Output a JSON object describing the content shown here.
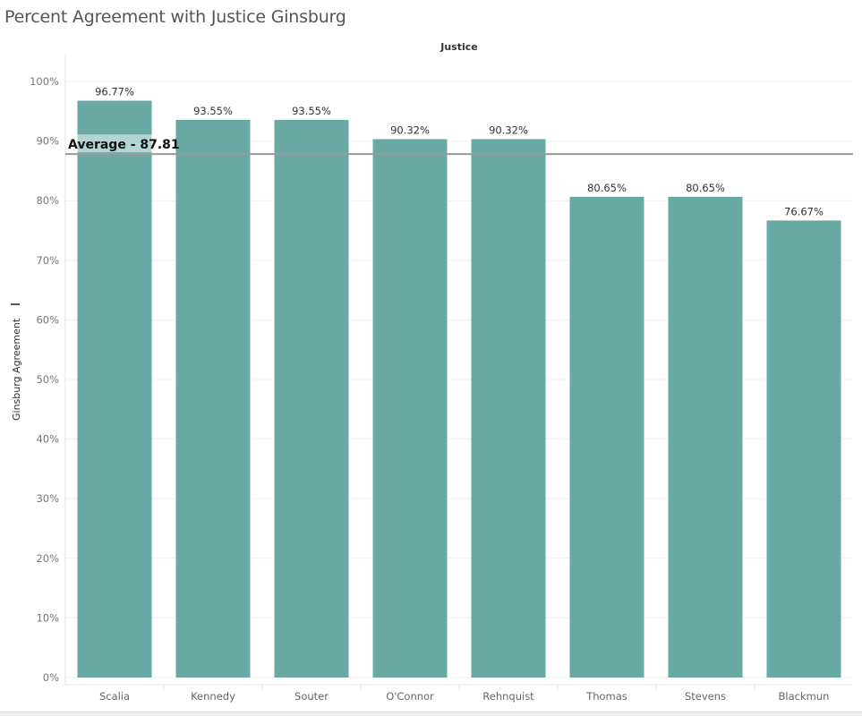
{
  "chart_data": {
    "type": "bar",
    "title": "Percent Agreement with Justice Ginsburg",
    "column_header": "Justice",
    "xlabel": "",
    "ylabel": "Ginsburg Agreement",
    "categories": [
      "Scalia",
      "Kennedy",
      "Souter",
      "O'Connor",
      "Rehnquist",
      "Thomas",
      "Stevens",
      "Blackmun"
    ],
    "values": [
      96.77,
      93.55,
      93.55,
      90.32,
      90.32,
      80.65,
      80.65,
      76.67
    ],
    "data_labels": [
      "96.77%",
      "93.55%",
      "93.55%",
      "90.32%",
      "90.32%",
      "80.65%",
      "80.65%",
      "76.67%"
    ],
    "ylim": [
      0,
      100
    ],
    "yticks": [
      0,
      10,
      20,
      30,
      40,
      50,
      60,
      70,
      80,
      90,
      100
    ],
    "ytick_labels": [
      "0%",
      "10%",
      "20%",
      "30%",
      "40%",
      "50%",
      "60%",
      "70%",
      "80%",
      "90%",
      "100%"
    ],
    "reference_line": {
      "value": 87.81,
      "label": "Average - 87.81"
    },
    "grid": true,
    "bar_color": "#69a9a3",
    "reference_line_color": "#9a9a9a"
  }
}
